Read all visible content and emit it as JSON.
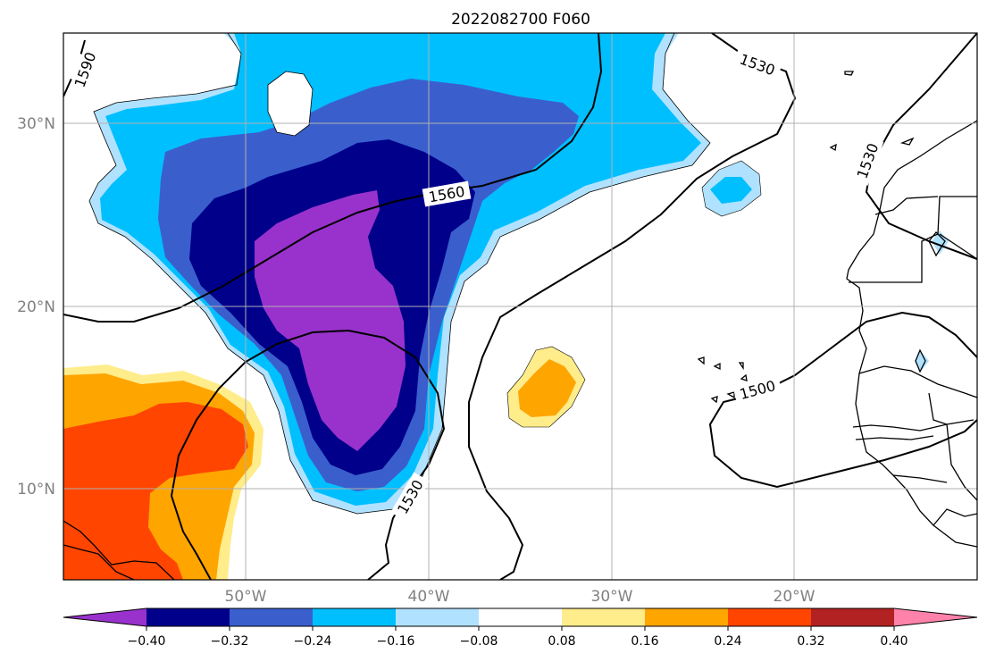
{
  "title": "2022082700 F060",
  "map": {
    "lon_ticks": [
      {
        "value": -50,
        "label": "50°W"
      },
      {
        "value": -40,
        "label": "40°W"
      },
      {
        "value": -30,
        "label": "30°W"
      },
      {
        "value": -20,
        "label": "20°W"
      }
    ],
    "lat_ticks": [
      {
        "value": 10,
        "label": "10°N"
      },
      {
        "value": 20,
        "label": "20°N"
      },
      {
        "value": 30,
        "label": "30°N"
      }
    ],
    "grid": true,
    "contour_labels": [
      "1590",
      "1530",
      "1560",
      "1530",
      "1530",
      "1500"
    ]
  },
  "colorbar": {
    "colors": [
      "#9932cc",
      "#00008b",
      "#3a5fcd",
      "#00bfff",
      "#b0e2ff",
      "#ffffff",
      "#ffec8b",
      "#ffa500",
      "#ff4500",
      "#b22222",
      "#ff82ab"
    ],
    "tick_labels": [
      "−0.40",
      "−0.32",
      "−0.24",
      "−0.16",
      "−0.08",
      "0.08",
      "0.16",
      "0.24",
      "0.32",
      "0.40"
    ],
    "extend": "both"
  }
}
